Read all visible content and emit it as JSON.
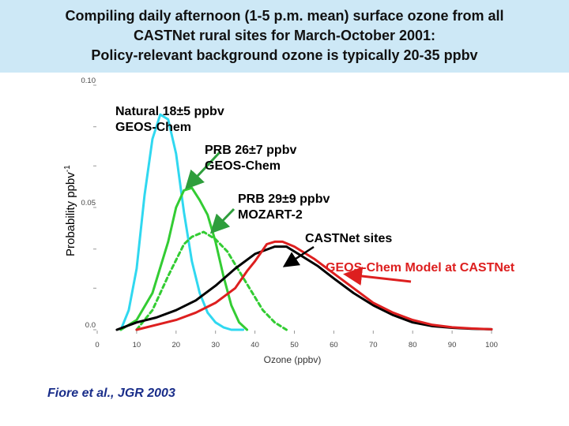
{
  "title": {
    "line1": "Compiling daily afternoon (1-5 p.m. mean) surface ozone from all",
    "line2": "CASTNet rural sites for March-October 2001:",
    "line3": "Policy-relevant background ozone is typically 20-35 ppbv"
  },
  "annotations": {
    "natural": [
      "Natural 18±5 ppbv",
      "GEOS-Chem"
    ],
    "prb_geos": [
      "PRB 26±7 ppbv",
      "GEOS-Chem"
    ],
    "prb_mozart": [
      "PRB 29±9 ppbv",
      "MOZART-2"
    ],
    "castnet": "CASTNet sites",
    "model_at_castnet": "GEOS-Chem Model at CASTNet"
  },
  "citation": "Fiore et al., JGR 2003",
  "colors": {
    "title_band": "#cde8f6",
    "natural": "#30d8f0",
    "prb_geos": "#33cc33",
    "prb_mozart": "#33cc33",
    "castnet": "#000000",
    "model_at_castnet": "#dd1f1f",
    "arrow_green": "#2e9e3c",
    "arrow_black": "#000000",
    "arrow_red": "#dd1f1f",
    "citation": "#1a2e8a"
  },
  "chart_data": {
    "type": "line",
    "xlabel": "Ozone (ppbv)",
    "ylabel": "Probability ppbv",
    "ylabel_superscript": "-1",
    "xlim": [
      0,
      100
    ],
    "ylim": [
      0,
      0.1
    ],
    "x_ticks": [
      "0",
      "10",
      "20",
      "30",
      "40",
      "50",
      "60",
      "70",
      "80",
      "90",
      "100"
    ],
    "y_ticks": [
      {
        "value": 0,
        "label": "0.0"
      },
      {
        "value": 0.05,
        "label": "0.05"
      },
      {
        "value": 0.1,
        "label": "0.10"
      }
    ],
    "y_minor_ticks": [
      0.017,
      0.033,
      0.067,
      0.083
    ],
    "grid": false,
    "series": [
      {
        "key": "natural",
        "style": "solid",
        "points": [
          [
            6,
            0
          ],
          [
            8,
            0.008
          ],
          [
            10,
            0.025
          ],
          [
            12,
            0.055
          ],
          [
            14,
            0.078
          ],
          [
            16,
            0.088
          ],
          [
            18,
            0.086
          ],
          [
            20,
            0.072
          ],
          [
            22,
            0.048
          ],
          [
            24,
            0.028
          ],
          [
            26,
            0.015
          ],
          [
            28,
            0.007
          ],
          [
            30,
            0.003
          ],
          [
            32,
            0.001
          ],
          [
            34,
            0
          ],
          [
            37,
            0
          ]
        ]
      },
      {
        "key": "prb_geos",
        "style": "solid",
        "points": [
          [
            6,
            0
          ],
          [
            10,
            0.004
          ],
          [
            14,
            0.015
          ],
          [
            18,
            0.036
          ],
          [
            20,
            0.05
          ],
          [
            22,
            0.057
          ],
          [
            24,
            0.058
          ],
          [
            26,
            0.053
          ],
          [
            28,
            0.047
          ],
          [
            30,
            0.036
          ],
          [
            32,
            0.022
          ],
          [
            34,
            0.01
          ],
          [
            36,
            0.003
          ],
          [
            38,
            0
          ]
        ]
      },
      {
        "key": "prb_mozart",
        "style": "dashed",
        "points": [
          [
            10,
            0
          ],
          [
            14,
            0.008
          ],
          [
            18,
            0.022
          ],
          [
            22,
            0.035
          ],
          [
            24,
            0.038
          ],
          [
            27,
            0.04
          ],
          [
            30,
            0.037
          ],
          [
            33,
            0.032
          ],
          [
            36,
            0.024
          ],
          [
            39,
            0.016
          ],
          [
            42,
            0.008
          ],
          [
            45,
            0.003
          ],
          [
            48,
            0
          ]
        ]
      },
      {
        "key": "castnet",
        "style": "solid",
        "points": [
          [
            5,
            0
          ],
          [
            10,
            0.003
          ],
          [
            15,
            0.005
          ],
          [
            20,
            0.008
          ],
          [
            25,
            0.012
          ],
          [
            30,
            0.018
          ],
          [
            35,
            0.025
          ],
          [
            40,
            0.031
          ],
          [
            45,
            0.034
          ],
          [
            48,
            0.034
          ],
          [
            52,
            0.03
          ],
          [
            56,
            0.026
          ],
          [
            60,
            0.021
          ],
          [
            65,
            0.015
          ],
          [
            70,
            0.01
          ],
          [
            75,
            0.006
          ],
          [
            80,
            0.003
          ],
          [
            85,
            0.0015
          ],
          [
            90,
            0.0008
          ],
          [
            95,
            0.0004
          ],
          [
            100,
            0.0002
          ]
        ]
      },
      {
        "key": "model_at_castnet",
        "style": "solid",
        "points": [
          [
            10,
            0
          ],
          [
            15,
            0.002
          ],
          [
            20,
            0.004
          ],
          [
            25,
            0.007
          ],
          [
            30,
            0.011
          ],
          [
            35,
            0.017
          ],
          [
            38,
            0.024
          ],
          [
            40,
            0.028
          ],
          [
            43,
            0.035
          ],
          [
            45,
            0.036
          ],
          [
            47,
            0.036
          ],
          [
            50,
            0.034
          ],
          [
            55,
            0.029
          ],
          [
            60,
            0.023
          ],
          [
            65,
            0.017
          ],
          [
            70,
            0.011
          ],
          [
            75,
            0.007
          ],
          [
            80,
            0.004
          ],
          [
            85,
            0.002
          ],
          [
            90,
            0.001
          ],
          [
            95,
            0.0005
          ],
          [
            100,
            0.0002
          ]
        ]
      }
    ]
  }
}
